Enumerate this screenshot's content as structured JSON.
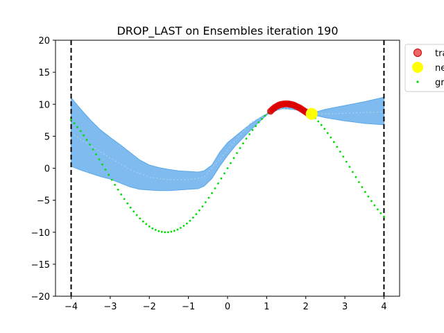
{
  "chart_data": {
    "type": "scatter",
    "title": "DROP_LAST on Ensembles iteration 190",
    "xlabel": "",
    "ylabel": "",
    "xlim": [
      -4.4,
      4.4
    ],
    "ylim": [
      -20,
      20
    ],
    "xticks": [
      -4,
      -3,
      -2,
      -1,
      0,
      1,
      2,
      3,
      4
    ],
    "yticks": [
      -20,
      -15,
      -10,
      -5,
      0,
      5,
      10,
      15,
      20
    ],
    "tick_labels_x": [
      "−4",
      "−3",
      "−2",
      "−1",
      "0",
      "1",
      "2",
      "3",
      "4"
    ],
    "tick_labels_y": [
      "−20",
      "−15",
      "−10",
      "−5",
      "0",
      "5",
      "10",
      "15",
      "20"
    ],
    "vlines": [
      -4,
      4
    ],
    "grid": false,
    "legend_position": "outside-top-right",
    "legend": [
      "tra",
      "ne",
      "gr"
    ],
    "colors": {
      "band": "#7fbbef",
      "band_edge": "#5aa8e8",
      "mean": "#a8d0f0",
      "train": "#dd0000",
      "new": "#ffff00",
      "ground_truth": "#00dd00",
      "vline": "#000000"
    },
    "series": [
      {
        "kind": "band",
        "x": [
          -4.0,
          -3.75,
          -3.5,
          -3.25,
          -3.0,
          -2.75,
          -2.5,
          -2.25,
          -2.0,
          -1.75,
          -1.5,
          -1.25,
          -1.0,
          -0.75,
          -0.6,
          -0.4,
          -0.2,
          0.0,
          0.2,
          0.5,
          0.8,
          1.0,
          1.1,
          1.4,
          1.7,
          2.0,
          2.15,
          2.5,
          3.0,
          3.5,
          4.0
        ],
        "upper": [
          11.0,
          9.2,
          7.5,
          6.0,
          4.8,
          3.7,
          2.5,
          1.3,
          0.5,
          0.1,
          -0.2,
          -0.4,
          -0.5,
          -0.6,
          -0.4,
          0.5,
          2.5,
          4.0,
          5.0,
          6.5,
          7.8,
          8.5,
          8.8,
          9.5,
          9.4,
          8.9,
          8.6,
          9.2,
          9.8,
          10.4,
          11.1
        ],
        "lower": [
          0.3,
          -0.3,
          -0.8,
          -1.3,
          -1.7,
          -2.3,
          -2.9,
          -3.3,
          -3.4,
          -3.5,
          -3.5,
          -3.4,
          -3.3,
          -3.2,
          -2.8,
          -1.6,
          0.3,
          2.0,
          3.5,
          5.4,
          7.2,
          8.3,
          8.7,
          9.3,
          9.2,
          8.7,
          8.4,
          7.9,
          7.4,
          7.0,
          6.8
        ]
      },
      {
        "kind": "mean",
        "x": [
          -4.0,
          -3.5,
          -3.0,
          -2.5,
          -2.0,
          -1.5,
          -1.0,
          -0.6,
          -0.2,
          0.2,
          0.6,
          1.0,
          1.4,
          1.8,
          2.15,
          2.5,
          3.0,
          3.5,
          4.0
        ],
        "y": [
          5.5,
          3.5,
          1.6,
          -0.2,
          -1.4,
          -1.8,
          -1.8,
          -1.4,
          1.4,
          4.3,
          7.2,
          8.4,
          9.4,
          9.0,
          8.5,
          8.5,
          8.6,
          8.7,
          8.8
        ]
      },
      {
        "name": "tra",
        "kind": "train",
        "x": [
          1.1,
          1.15,
          1.2,
          1.25,
          1.3,
          1.35,
          1.4,
          1.45,
          1.5,
          1.55,
          1.6,
          1.65,
          1.7,
          1.75,
          1.8,
          1.85,
          1.9,
          1.95,
          2.0,
          2.05
        ],
        "y": [
          8.9,
          9.2,
          9.45,
          9.65,
          9.82,
          9.94,
          10.0,
          10.05,
          10.07,
          10.05,
          10.0,
          9.95,
          9.85,
          9.7,
          9.55,
          9.4,
          9.2,
          9.0,
          8.8,
          8.6
        ]
      },
      {
        "name": "ne",
        "kind": "new",
        "x": [
          2.15
        ],
        "y": [
          8.5
        ]
      },
      {
        "name": "gr",
        "kind": "ground_truth",
        "function": "10*sin(x)",
        "x_from": -4.0,
        "x_to": 4.0,
        "points": 101
      }
    ]
  }
}
